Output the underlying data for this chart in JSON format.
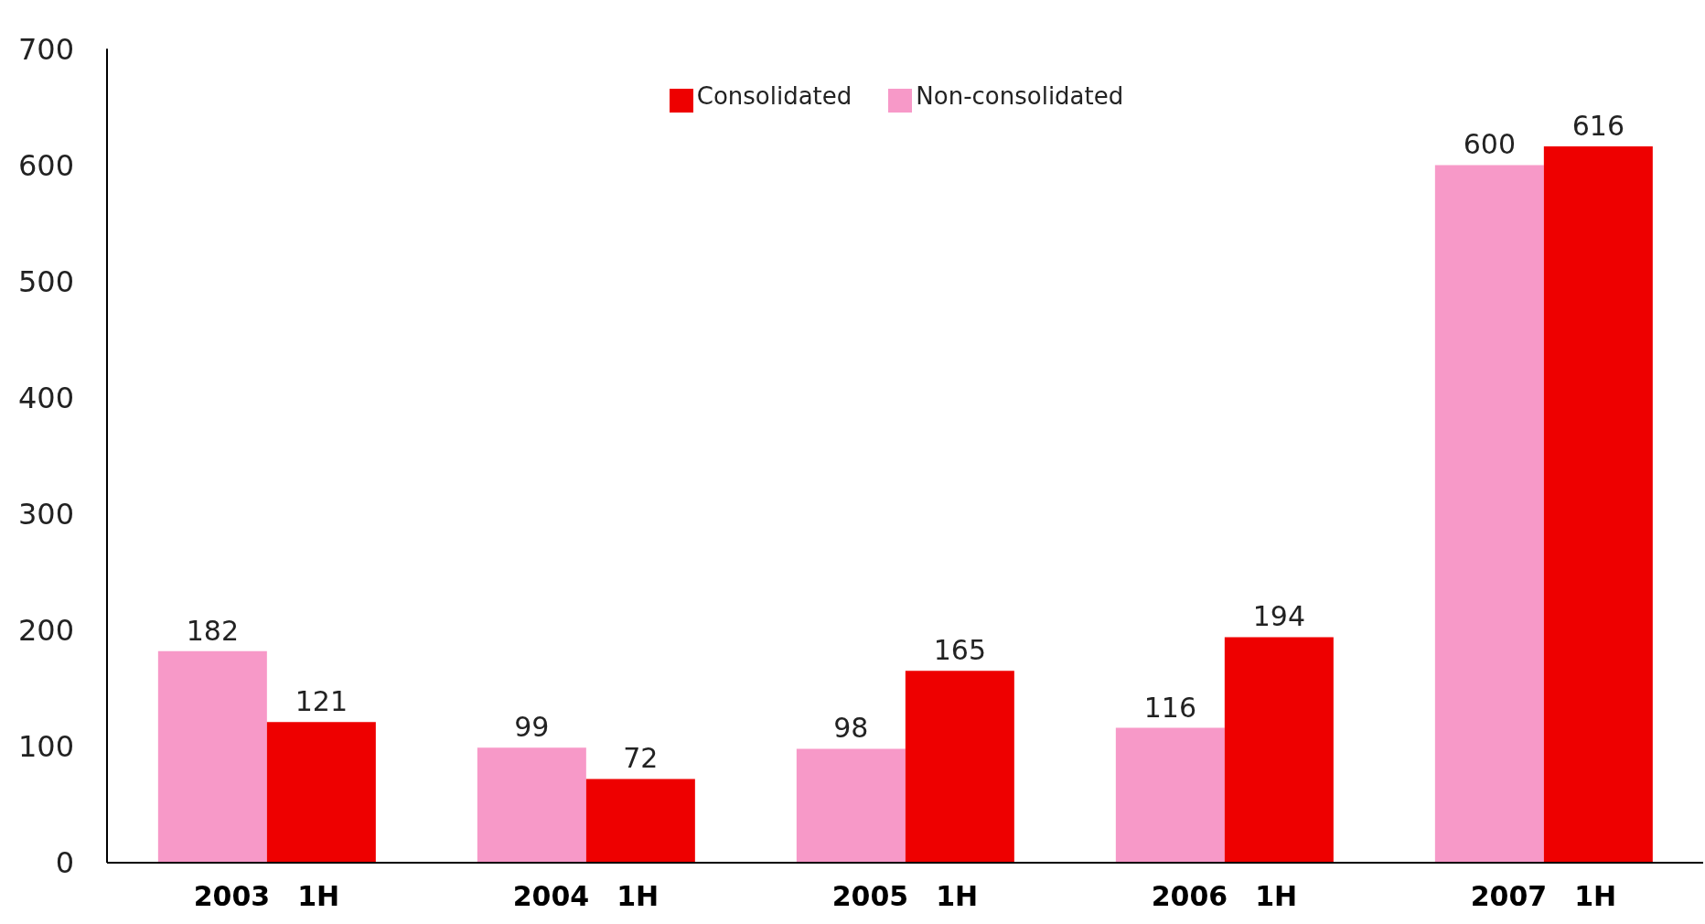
{
  "chart_data": {
    "type": "bar",
    "categories": [
      "2003　1H",
      "2004　1H",
      "2005　1H",
      "2006　1H",
      "2007　1H"
    ],
    "series": [
      {
        "name": "Non-consolidated",
        "color": "#f799c8",
        "values": [
          182,
          99,
          98,
          116,
          600
        ]
      },
      {
        "name": "Consolidated",
        "color": "#ee0000",
        "values": [
          121,
          72,
          165,
          194,
          616
        ]
      }
    ],
    "ylim": [
      0,
      700
    ],
    "yticks": [
      0,
      100,
      200,
      300,
      400,
      500,
      600,
      700
    ],
    "grid": false,
    "legend": "top",
    "data_labels": true
  }
}
